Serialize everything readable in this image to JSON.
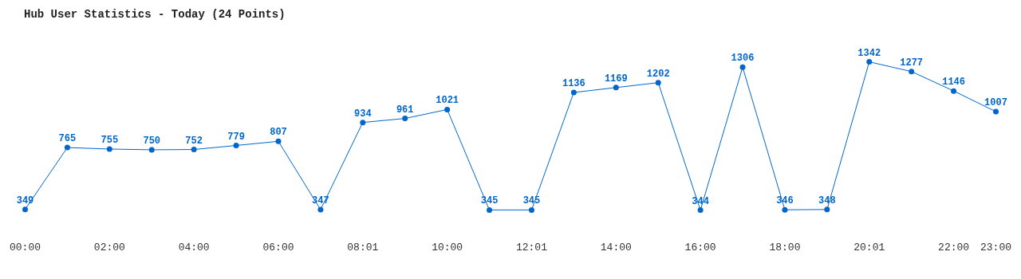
{
  "chart_data": {
    "type": "line",
    "title": "Hub User Statistics - Today (24 Points)",
    "categories": [
      "00:00",
      null,
      "02:00",
      null,
      "04:00",
      null,
      "06:00",
      null,
      "08:01",
      null,
      "10:00",
      null,
      "12:01",
      null,
      "14:00",
      null,
      "16:00",
      null,
      "18:00",
      null,
      "20:01",
      null,
      "22:00",
      "23:00"
    ],
    "series": [
      {
        "color": "#0066cc",
        "values": [
          349,
          765,
          755,
          750,
          752,
          779,
          807,
          347,
          934,
          961,
          1021,
          345,
          345,
          1136,
          1169,
          1202,
          344,
          1306,
          346,
          348,
          1342,
          1277,
          1146,
          1007
        ]
      }
    ],
    "data_labels": true,
    "marker": "circle",
    "line_style": "solid",
    "grid": false,
    "legend": false,
    "tick_labels": "x"
  }
}
